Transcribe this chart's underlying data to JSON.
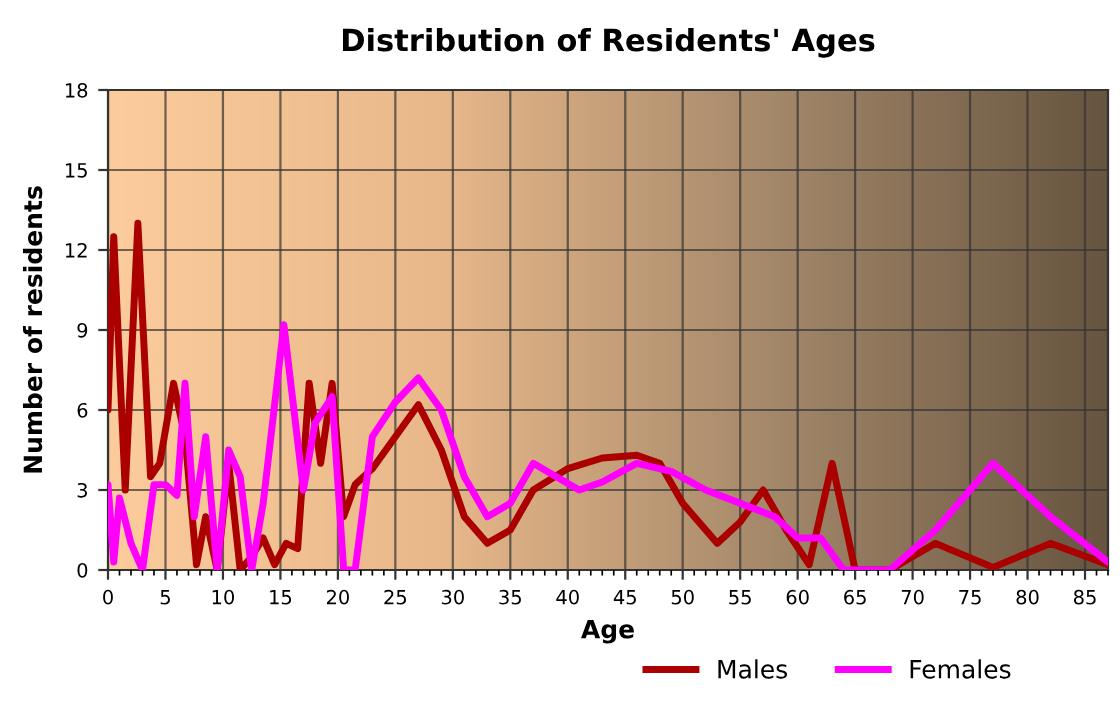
{
  "chart_data": {
    "type": "line",
    "title": "Distribution of Residents' Ages",
    "xlabel": "Age",
    "ylabel": "Number of residents",
    "series": [
      {
        "name": "Males",
        "color": "#aa0000",
        "x": [
          0,
          0.5,
          1.5,
          2.6,
          3.7,
          4.5,
          5.7,
          6.7,
          7.7,
          8.5,
          9.5,
          10.5,
          11.5,
          12.5,
          13.5,
          14.5,
          15.5,
          16.5,
          17.5,
          18.5,
          19.5,
          20.5,
          21.5,
          23,
          25,
          27,
          29,
          31,
          33,
          35,
          37,
          40,
          43,
          46,
          48,
          50,
          53,
          55,
          57,
          59,
          61,
          63,
          65,
          68,
          72,
          77,
          82,
          87
        ],
        "values": [
          6,
          12.5,
          3,
          13,
          3.5,
          4,
          7,
          5,
          0.2,
          2,
          0,
          4,
          0,
          0.5,
          1.2,
          0.2,
          1,
          0.8,
          7,
          4,
          7,
          2,
          3.2,
          3.8,
          5,
          6.2,
          4.5,
          2,
          1,
          1.5,
          3,
          3.8,
          4.2,
          4.3,
          4,
          2.5,
          1,
          1.8,
          3,
          1.5,
          0.2,
          4,
          0,
          0,
          1,
          0.1,
          1,
          0.2
        ]
      },
      {
        "name": "Females",
        "color": "#ff00ff",
        "x": [
          0,
          0.5,
          1,
          2,
          3,
          4,
          5,
          6,
          6.7,
          7.5,
          8.5,
          9.5,
          10.5,
          11.5,
          12.5,
          13.5,
          15.3,
          17,
          18,
          19.5,
          20.5,
          21.5,
          23,
          25,
          27,
          29,
          31,
          33,
          35,
          37,
          39,
          41,
          43,
          46,
          49,
          52,
          55,
          58,
          60,
          62,
          64,
          66,
          68,
          72,
          77,
          82,
          87
        ],
        "values": [
          3.2,
          0.3,
          2.7,
          1,
          0,
          3.2,
          3.2,
          2.8,
          7,
          2,
          5,
          0,
          4.5,
          3.5,
          0,
          2.5,
          9.2,
          3,
          5.5,
          6.5,
          0,
          0,
          5,
          6.3,
          7.2,
          6,
          3.5,
          2,
          2.5,
          4,
          3.5,
          3,
          3.3,
          4,
          3.7,
          3,
          2.5,
          2,
          1.2,
          1.2,
          0,
          0,
          0,
          1.5,
          4,
          2,
          0.3
        ]
      }
    ],
    "xlim": [
      0,
      87
    ],
    "ylim": [
      0,
      18
    ],
    "xticks": [
      0,
      5,
      10,
      15,
      20,
      25,
      30,
      35,
      40,
      45,
      50,
      55,
      60,
      65,
      70,
      75,
      80,
      85
    ],
    "yticks": [
      0,
      3,
      6,
      9,
      12,
      15,
      18
    ],
    "grid": true,
    "legend": "bottom",
    "line_style": "solid",
    "marker": "none"
  }
}
